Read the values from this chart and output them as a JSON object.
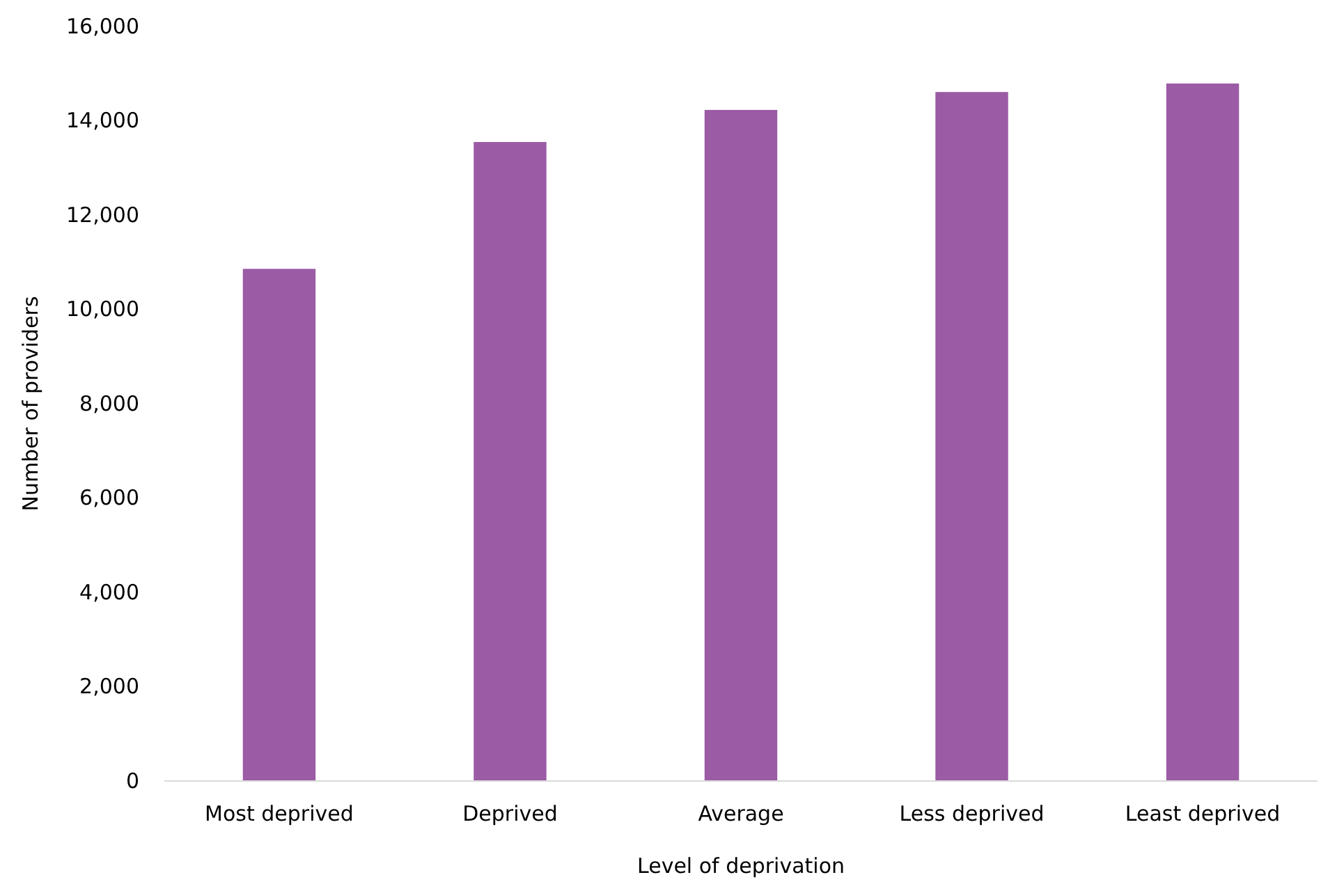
{
  "chart_data": {
    "type": "bar",
    "xlabel": "Level of deprivation",
    "ylabel": "Number of providers",
    "categories": [
      "Most deprived",
      "Deprived",
      "Average",
      "Less deprived",
      "Least deprived"
    ],
    "values": [
      10860,
      13550,
      14230,
      14610,
      14790
    ],
    "color": "#9b5ba5",
    "ylim": [
      0,
      16000
    ],
    "yticks": [
      {
        "value": 0,
        "label": "0"
      },
      {
        "value": 2000,
        "label": "2,000"
      },
      {
        "value": 4000,
        "label": "4,000"
      },
      {
        "value": 6000,
        "label": "6,000"
      },
      {
        "value": 8000,
        "label": "8,000"
      },
      {
        "value": 10000,
        "label": "10,000"
      },
      {
        "value": 12000,
        "label": "12,000"
      },
      {
        "value": 14000,
        "label": "14,000"
      },
      {
        "value": 16000,
        "label": "16,000"
      }
    ],
    "grid": false
  }
}
